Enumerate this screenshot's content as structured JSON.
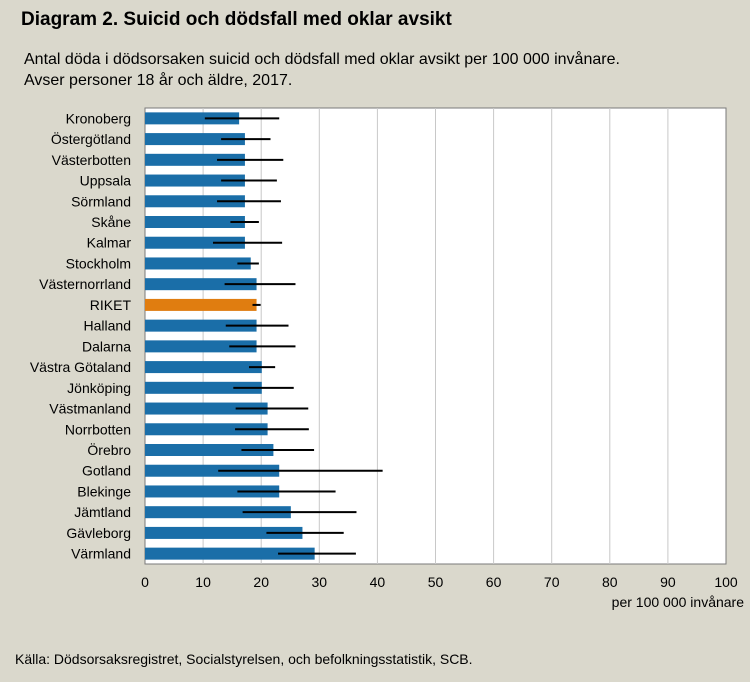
{
  "title": "Diagram 2. Suicid och dödsfall med oklar avsikt",
  "subtitle_lines": [
    "Antal döda i dödsorsaken suicid och dödsfall med oklar avsikt per 100 000 invånare.",
    "Avser personer 18 år och äldre, 2017."
  ],
  "source": "Källa: Dödsorsaksregistret, Socialstyrelsen, och befolkningsstatistik, SCB.",
  "colors": {
    "bar": "#1a6ea8",
    "highlight": "#e07d10",
    "background": "#dad8cc"
  },
  "chart_data": {
    "type": "bar",
    "orientation": "horizontal",
    "xlabel": "per 100 000 invånare",
    "ylabel": "",
    "xlim": [
      0,
      100
    ],
    "xticks": [
      0,
      10,
      20,
      30,
      40,
      50,
      60,
      70,
      80,
      90,
      100
    ],
    "grid": "vertical",
    "highlight_category": "RIKET",
    "categories": [
      "Kronoberg",
      "Östergötland",
      "Västerbotten",
      "Uppsala",
      "Sörmland",
      "Skåne",
      "Kalmar",
      "Stockholm",
      "Västernorrland",
      "RIKET",
      "Halland",
      "Dalarna",
      "Västra Götaland",
      "Jönköping",
      "Västmanland",
      "Norrbotten",
      "Örebro",
      "Gotland",
      "Blekinge",
      "Jämtland",
      "Gävleborg",
      "Värmland"
    ],
    "values": [
      16.2,
      17.2,
      17.2,
      17.2,
      17.2,
      17.2,
      17.2,
      18.2,
      19.2,
      19.2,
      19.2,
      19.2,
      20.1,
      20.1,
      21.1,
      21.1,
      22.1,
      23.1,
      23.1,
      25.1,
      27.1,
      29.2
    ],
    "err_low": [
      10.3,
      13.1,
      12.4,
      13.1,
      12.4,
      14.7,
      11.7,
      15.9,
      13.7,
      18.5,
      13.9,
      14.5,
      17.9,
      15.2,
      15.6,
      15.5,
      16.6,
      12.6,
      15.9,
      16.8,
      20.9,
      22.9
    ],
    "err_high": [
      23.1,
      21.6,
      23.8,
      22.7,
      23.4,
      19.6,
      23.6,
      19.6,
      25.9,
      19.9,
      24.7,
      25.9,
      22.4,
      25.6,
      28.1,
      28.2,
      29.1,
      40.9,
      32.8,
      36.4,
      34.2,
      36.3
    ]
  }
}
